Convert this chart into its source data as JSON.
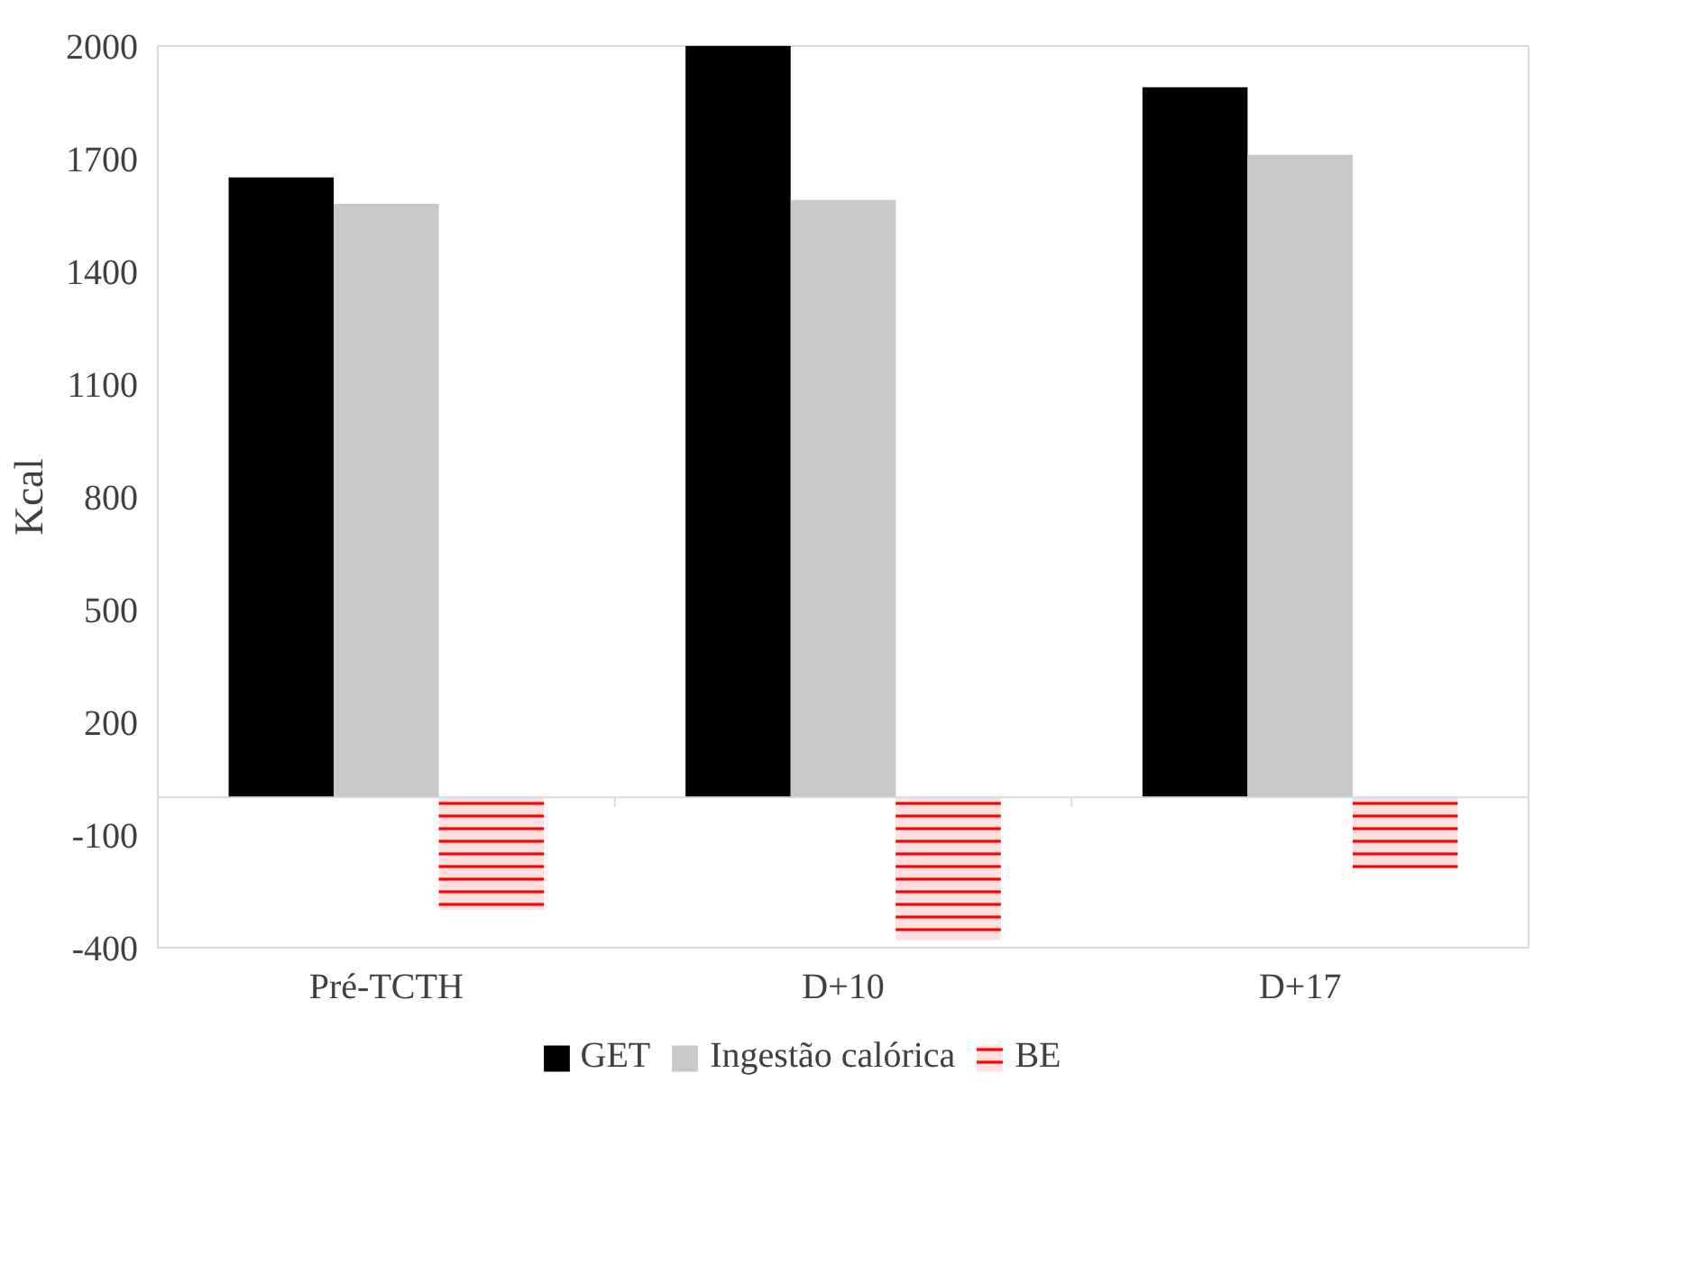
{
  "chart_data": {
    "type": "bar",
    "ylabel": "Kcal",
    "categories": [
      "Pré-TCTH",
      "D+10",
      "D+17"
    ],
    "ylim": [
      -400,
      2000
    ],
    "yticks": [
      -400,
      -100,
      200,
      500,
      800,
      1100,
      1400,
      1700,
      2000
    ],
    "grid": false,
    "legend": "bottom",
    "series": [
      {
        "name": "GET",
        "color": "#000000",
        "values": [
          1650,
          2000,
          1890
        ]
      },
      {
        "name": "Ingestão calórica",
        "color": "#c8c8c8",
        "values": [
          1580,
          1590,
          1710
        ]
      },
      {
        "name": "BE",
        "color": "#ff0000",
        "values": [
          -300,
          -380,
          -190
        ]
      }
    ]
  }
}
